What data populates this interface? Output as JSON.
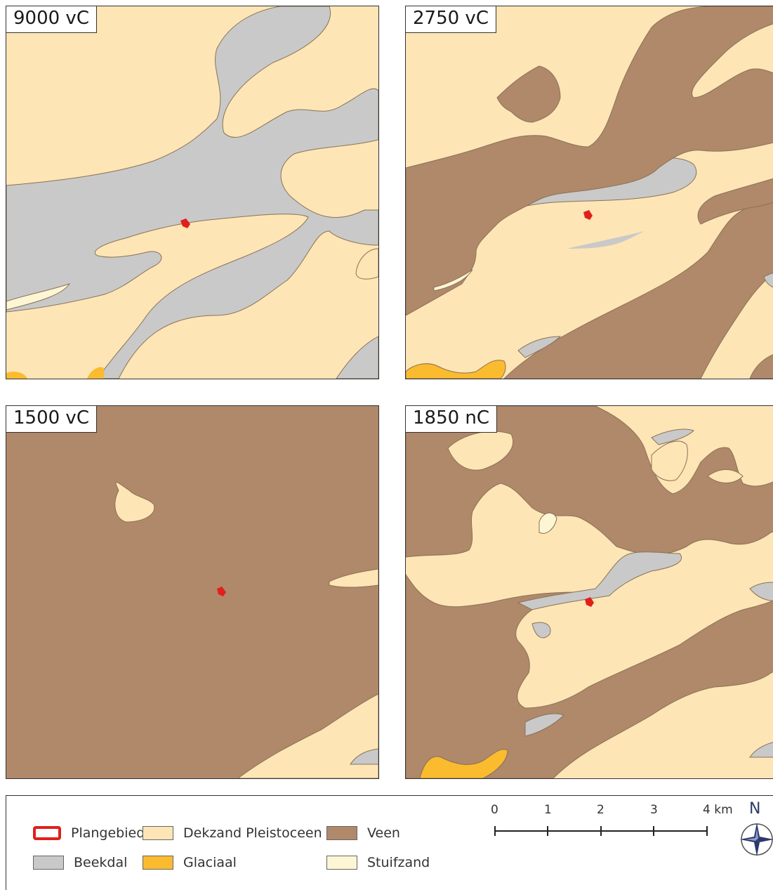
{
  "colors": {
    "dekzand": "#fde5b5",
    "beekdal": "#c9c9c9",
    "veen": "#b0886a",
    "glaciaal": "#fbbb2e",
    "stuifzand": "#fdf6d4",
    "plangebied": "#e0201b",
    "outline": "#8a7256"
  },
  "panels": [
    {
      "label": "9000 vC"
    },
    {
      "label": "2750 vC"
    },
    {
      "label": "1500 vC"
    },
    {
      "label": "1850 nC"
    }
  ],
  "legend": {
    "items": [
      {
        "label": "Plangebied",
        "color": "#e0201b",
        "style": "outline"
      },
      {
        "label": "Dekzand Pleistoceen",
        "color": "#fde5b5",
        "style": "fill"
      },
      {
        "label": "Veen",
        "color": "#b0886a",
        "style": "fill"
      },
      {
        "label": "Beekdal",
        "color": "#c9c9c9",
        "style": "fill"
      },
      {
        "label": "Glaciaal",
        "color": "#fbbb2e",
        "style": "fill"
      },
      {
        "label": "Stuifzand",
        "color": "#fdf6d4",
        "style": "fill"
      }
    ]
  },
  "scale_bar": {
    "ticks": [
      "0",
      "1",
      "2",
      "3",
      "4 km"
    ]
  },
  "north_arrow": {
    "label": "N",
    "icon": "compass-rose-icon"
  }
}
